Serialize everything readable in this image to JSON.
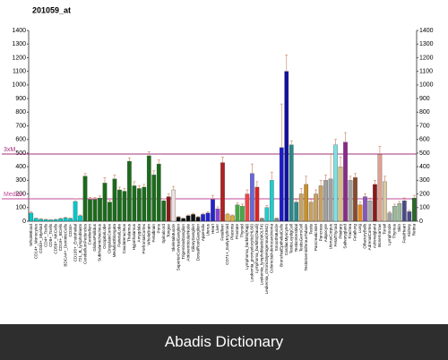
{
  "chart_data": {
    "type": "bar",
    "title": "201059_at",
    "categories": [
      "WholeBlood",
      "CD14+_Monocytes",
      "CD33+_Myeloid",
      "CD4+_Tcells",
      "CD8+_Tcells",
      "CD56+_NKCells",
      "CD19+_BCells",
      "BDCA4+_DentriticCells",
      "CD34+",
      "CD105+_Endothelial",
      "721_B_lymphoblasts",
      "CerebellumPeduncles",
      "Cerebellum",
      "GlobusPallidus",
      "SubthalamicNucleus",
      "OccipitalLobe",
      "CingulateCortex",
      "MedullaOblongata",
      "ParietalLobe",
      "Caudatenucleus",
      "Thalamus",
      "Hypothalamus",
      "Amygdala",
      "PrefrontalCortex",
      "WholeBrain",
      "Fetalbrain",
      "Pons",
      "Spinalcord",
      "Tongue",
      "SkeletalMuscle",
      "SuperiorCervicalGanglion",
      "TrigeminalGanglion",
      "AtrioventricularNode",
      "CiliaryGanglion",
      "DorsalRootGanglion",
      "Appendix",
      "Uterus",
      "Heart",
      "Liver",
      "Fetalliver",
      "CD71+_EarlyErythroid",
      "Placenta",
      "Prostate",
      "Thyroid",
      "Lymphoma_burkitts(Raji)",
      "Leukemia_promyelocytic(HL60)",
      "Lymphoma_burkitts(Daudi)",
      "Leukemia_lymphoblastic(MOLT4)",
      "Leukemia_chronicMyelogenous(K562)",
      "ColorectalAdenocarcinoma",
      "SmoothMuscle",
      "BronchialEpithelialCells",
      "CardiacMyocytes",
      "TestisLeydigCell",
      "TestisInterstitial",
      "TestisGermCell",
      "TestisSeminiferousTubule",
      "Testis",
      "PancreaticIslet",
      "Pancreas",
      "Adipocyte",
      "UterusCorpus",
      "FetalThyroid",
      "Pituitary",
      "Salivarygland",
      "Trachea",
      "Fetallung",
      "Lung",
      "OlfactoryBulb",
      "AdrenalCortex",
      "Adrenalgland",
      "Bonemarrow",
      "Tonsil",
      "Lymphnode",
      "Thymus",
      "Skin",
      "FetalHeart",
      "Kidney",
      "Retina"
    ],
    "values": [
      60,
      20,
      15,
      12,
      10,
      12,
      18,
      25,
      20,
      145,
      40,
      330,
      160,
      160,
      170,
      280,
      140,
      310,
      230,
      220,
      440,
      260,
      240,
      250,
      480,
      340,
      420,
      150,
      180,
      230,
      30,
      20,
      40,
      50,
      30,
      50,
      60,
      160,
      90,
      430,
      50,
      40,
      120,
      110,
      200,
      350,
      250,
      20,
      100,
      300,
      20,
      540,
      1100,
      560,
      140,
      200,
      270,
      140,
      200,
      260,
      300,
      310,
      560,
      400,
      580,
      300,
      320,
      120,
      180,
      150,
      270,
      490,
      290,
      60,
      110,
      130,
      150,
      70,
      170
    ],
    "errors": [
      10,
      4,
      3,
      3,
      2,
      3,
      4,
      5,
      4,
      20,
      6,
      20,
      15,
      15,
      15,
      40,
      15,
      30,
      20,
      20,
      25,
      30,
      20,
      20,
      30,
      30,
      30,
      15,
      20,
      25,
      5,
      4,
      6,
      8,
      5,
      8,
      10,
      30,
      15,
      40,
      8,
      6,
      15,
      15,
      30,
      70,
      40,
      4,
      15,
      60,
      4,
      320,
      120,
      30,
      20,
      40,
      60,
      20,
      30,
      40,
      40,
      180,
      40,
      70,
      70,
      30,
      30,
      20,
      20,
      20,
      30,
      60,
      40,
      10,
      15,
      15,
      20,
      10,
      20
    ],
    "colors": [
      "#00c8c8",
      "#00c8c8",
      "#00c8c8",
      "#00c8c8",
      "#00c8c8",
      "#00c8c8",
      "#00c8c8",
      "#00c8c8",
      "#00c8c8",
      "#00c8c8",
      "#00c8c8",
      "#1a6b1a",
      "#1a6b1a",
      "#1a6b1a",
      "#1a6b1a",
      "#1a6b1a",
      "#1a6b1a",
      "#1a6b1a",
      "#1a6b1a",
      "#1a6b1a",
      "#1a6b1a",
      "#1a6b1a",
      "#1a6b1a",
      "#1a6b1a",
      "#1a6b1a",
      "#1a6b1a",
      "#1a6b1a",
      "#1a6b1a",
      "#8b1a1a",
      "#f0e0e0",
      "#111111",
      "#111111",
      "#111111",
      "#111111",
      "#111111",
      "#2222cc",
      "#2222cc",
      "#2222cc",
      "#8844cc",
      "#b02020",
      "#ddaa44",
      "#ddaa44",
      "#44aa44",
      "#44aa44",
      "#ee4444",
      "#6666dd",
      "#dd2222",
      "#888888",
      "#22cccc",
      "#22cccc",
      "#888888",
      "#1a1acc",
      "#1010a0",
      "#2a8a8a",
      "#2a8a8a",
      "#c8a060",
      "#c8902a",
      "#c8a060",
      "#c8a060",
      "#c8a060",
      "#a0a0a0",
      "#a0a0a0",
      "#80e0e0",
      "#d8c080",
      "#8a2a8a",
      "#a0a0a0",
      "#8a4a2a",
      "#e08a20",
      "#8855bb",
      "#aaaaaa",
      "#8a1a1a",
      "#e0a090",
      "#d8c8a0",
      "#a0a0a0",
      "#9ab89a",
      "#9ab89a",
      "#4a4a8a",
      "#4a4a8a",
      "#2a6a2a"
    ],
    "ylim": [
      0,
      1400
    ],
    "yticks": [
      0,
      100,
      200,
      300,
      400,
      500,
      600,
      700,
      800,
      900,
      1000,
      1100,
      1200,
      1300,
      1400
    ],
    "lines": [
      {
        "label": "3xM",
        "value": 493,
        "color": "#a0307a"
      },
      {
        "label": "Median",
        "value": 164,
        "color": "#c04a9a"
      }
    ]
  },
  "caption": "Abadis Dictionary"
}
